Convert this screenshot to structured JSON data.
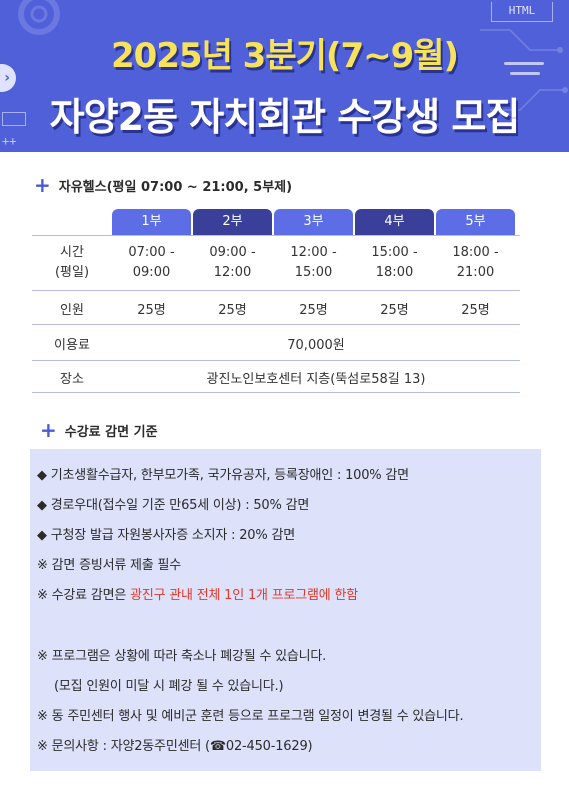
{
  "banner": {
    "line1": "2025년 3분기(7~9월)",
    "line2": "자양2동 자치회관 수강생 모집",
    "html_tag": "HTML",
    "nav_arrow": "›",
    "code_tag": "<>",
    "plus_code": "++"
  },
  "section1": {
    "title": "자유헬스(평일 07:00 ~ 21:00,  5부제)"
  },
  "schedule": {
    "sessions": [
      {
        "name": "1부",
        "time1": "07:00 -",
        "time2": "09:00",
        "people": "25명"
      },
      {
        "name": "2부",
        "time1": "09:00 -",
        "time2": "12:00",
        "people": "25명"
      },
      {
        "name": "3부",
        "time1": "12:00 -",
        "time2": "15:00",
        "people": "25명"
      },
      {
        "name": "4부",
        "time1": "15:00 -",
        "time2": "18:00",
        "people": "25명"
      },
      {
        "name": "5부",
        "time1": "18:00 -",
        "time2": "21:00",
        "people": "25명"
      }
    ],
    "time_label1": "시간",
    "time_label2": "(평일)",
    "people_label": "인원",
    "fee_label": "이용료",
    "fee_value": "70,000원",
    "place_label": "장소",
    "place_value": "광진노인보호센터 지층(뚝섬로58길 13)"
  },
  "section2": {
    "title": "수강료 감면 기준"
  },
  "discount": {
    "line1": "◆ 기초생활수급자, 한부모가족, 국가유공자, 등록장애인 : 100% 감면",
    "line2": "◆ 경로우대(접수일 기준 만65세 이상) : 50% 감면",
    "line3": "◆ 구청장 발급 자원봉사자증 소지자 : 20% 감면",
    "line4": "※ 감면 증빙서류 제출 필수",
    "line5_prefix": "※ 수강료 감면은 ",
    "line5_red": "광진구 관내 전체 1인 1개 프로그램에 한함",
    "line6": "※ 프로그램은 상황에 따라 축소나 폐강될 수 있습니다.",
    "line7": "(모집 인원이 미달 시 폐강 될 수 있습니다.)",
    "line8": "※ 동 주민센터 행사 및 예비군 훈련 등으로 프로그램 일정이 변경될 수 있습니다.",
    "line9": "※ 문의사항 : 자양2동주민센터 (☎02-450-1629)"
  },
  "colors": {
    "banner_bg": "#5060d8",
    "title_yellow": "#f7e35a",
    "tab_light": "#5d6de6",
    "tab_dark": "#3a4099",
    "highlight_red": "#e03a2c",
    "discount_bg": "#dde1fa"
  }
}
